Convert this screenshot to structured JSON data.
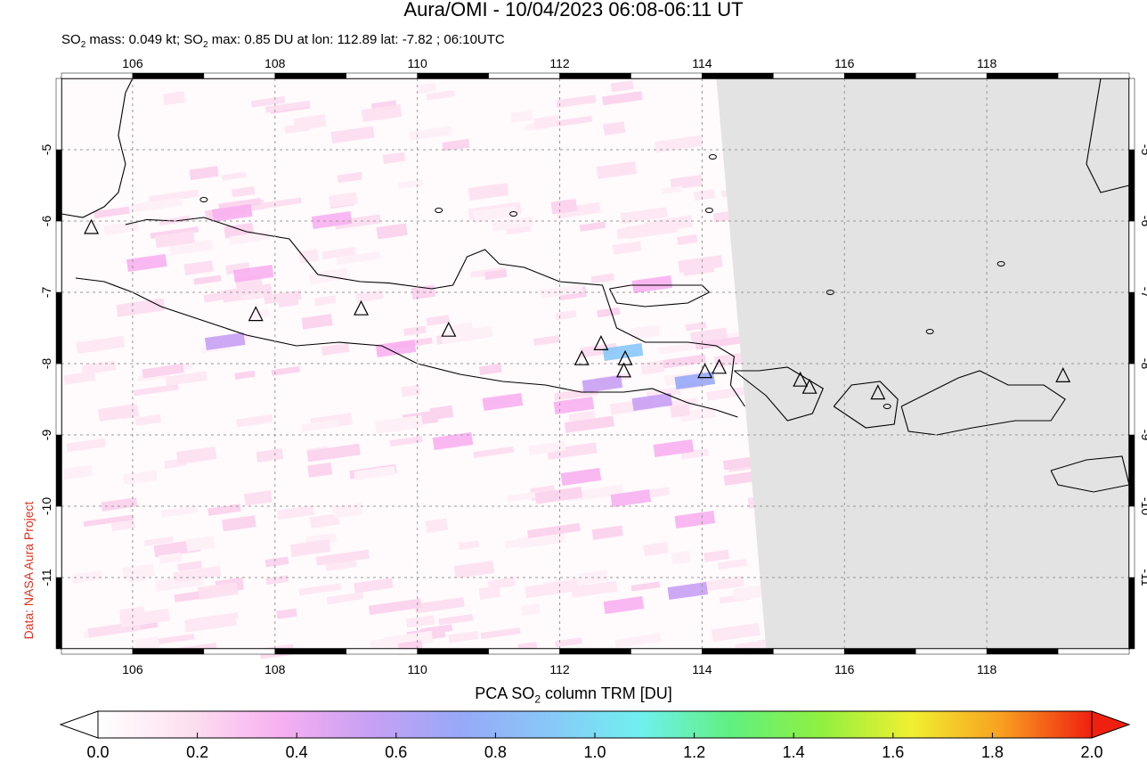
{
  "title": "Aura/OMI - 10/04/2023 06:08-06:11 UT",
  "subtitle_parts": {
    "a": "SO",
    "a_sub": "2",
    "b": " mass: 0.049 kt; SO",
    "b_sub": "2",
    "c": " max: 0.85 DU at lon: 112.89 lat: -7.82 ; 06:10UTC"
  },
  "credit": "Data: NASA Aura Project",
  "colorbar": {
    "title_pre": "PCA SO",
    "title_sub": "2",
    "title_post": " column TRM [DU]",
    "labels": [
      "0.0",
      "0.2",
      "0.4",
      "0.6",
      "0.8",
      "1.0",
      "1.2",
      "1.4",
      "1.6",
      "1.8",
      "2.0"
    ],
    "min": 0.0,
    "max": 2.0,
    "colors": [
      "#ffffff",
      "#fde0f0",
      "#f8b0f0",
      "#c8a0f4",
      "#98a8f8",
      "#88c8f8",
      "#70f0f0",
      "#60f080",
      "#90f040",
      "#f0f030",
      "#f8a020",
      "#f02010"
    ]
  },
  "map": {
    "lon_range": [
      105.0,
      120.0
    ],
    "lat_range": [
      -12.0,
      -4.0
    ],
    "x_ticks": [
      "106",
      "108",
      "110",
      "112",
      "114",
      "116",
      "118"
    ],
    "x_tick_values": [
      106,
      108,
      110,
      112,
      114,
      116,
      118
    ],
    "y_ticks": [
      "-5",
      "-6",
      "-7",
      "-8",
      "-9",
      "-10",
      "-11"
    ],
    "y_tick_values": [
      -5,
      -6,
      -7,
      -8,
      -9,
      -10,
      -11
    ],
    "no_data_color": "#e3e3e3",
    "swath_boundary_lon": [
      [
        114.2,
        -4.0
      ],
      [
        114.6,
        -8.5
      ],
      [
        114.9,
        -12.0
      ]
    ],
    "volcanoes": [
      {
        "lon": 105.42,
        "lat": -6.1
      },
      {
        "lon": 107.73,
        "lat": -7.32
      },
      {
        "lon": 109.21,
        "lat": -7.24
      },
      {
        "lon": 110.44,
        "lat": -7.54
      },
      {
        "lon": 112.31,
        "lat": -7.94
      },
      {
        "lon": 112.58,
        "lat": -7.73
      },
      {
        "lon": 112.92,
        "lat": -7.94
      },
      {
        "lon": 112.9,
        "lat": -8.11
      },
      {
        "lon": 114.04,
        "lat": -8.12
      },
      {
        "lon": 114.24,
        "lat": -8.06
      },
      {
        "lon": 115.38,
        "lat": -8.24
      },
      {
        "lon": 115.51,
        "lat": -8.34
      },
      {
        "lon": 116.47,
        "lat": -8.42
      },
      {
        "lon": 119.07,
        "lat": -8.18
      }
    ],
    "so2_pixels": [
      {
        "lon": 112.89,
        "lat": -7.85,
        "value": 0.85
      },
      {
        "lon": 112.6,
        "lat": -8.3,
        "value": 0.62
      },
      {
        "lon": 113.9,
        "lat": -8.25,
        "value": 0.66
      },
      {
        "lon": 113.3,
        "lat": -8.55,
        "value": 0.55
      },
      {
        "lon": 107.7,
        "lat": -6.75,
        "value": 0.45
      },
      {
        "lon": 107.3,
        "lat": -7.7,
        "value": 0.5
      },
      {
        "lon": 107.4,
        "lat": -5.9,
        "value": 0.4
      },
      {
        "lon": 113.8,
        "lat": -11.2,
        "value": 0.55
      },
      {
        "lon": 113.6,
        "lat": -9.2,
        "value": 0.45
      },
      {
        "lon": 111.2,
        "lat": -8.55,
        "value": 0.35
      },
      {
        "lon": 112.2,
        "lat": -8.6,
        "value": 0.4
      },
      {
        "lon": 109.7,
        "lat": -7.8,
        "value": 0.3
      },
      {
        "lon": 110.5,
        "lat": -9.1,
        "value": 0.3
      },
      {
        "lon": 112.3,
        "lat": -9.6,
        "value": 0.3
      },
      {
        "lon": 113.0,
        "lat": -9.9,
        "value": 0.35
      },
      {
        "lon": 108.8,
        "lat": -6.0,
        "value": 0.3
      },
      {
        "lon": 106.2,
        "lat": -6.6,
        "value": 0.28
      },
      {
        "lon": 111.0,
        "lat": -5.6,
        "value": 0.25
      },
      {
        "lon": 112.8,
        "lat": -5.3,
        "value": 0.25
      },
      {
        "lon": 113.3,
        "lat": -6.9,
        "value": 0.3
      },
      {
        "lon": 106.9,
        "lat": -9.3,
        "value": 0.25
      },
      {
        "lon": 108.5,
        "lat": -10.6,
        "value": 0.22
      },
      {
        "lon": 110.8,
        "lat": -10.9,
        "value": 0.25
      },
      {
        "lon": 112.9,
        "lat": -11.4,
        "value": 0.3
      },
      {
        "lon": 107.2,
        "lat": -11.2,
        "value": 0.2
      },
      {
        "lon": 113.9,
        "lat": -10.2,
        "value": 0.35
      },
      {
        "lon": 109.5,
        "lat": -4.5,
        "value": 0.22
      },
      {
        "lon": 105.8,
        "lat": -8.7,
        "value": 0.22
      }
    ]
  }
}
